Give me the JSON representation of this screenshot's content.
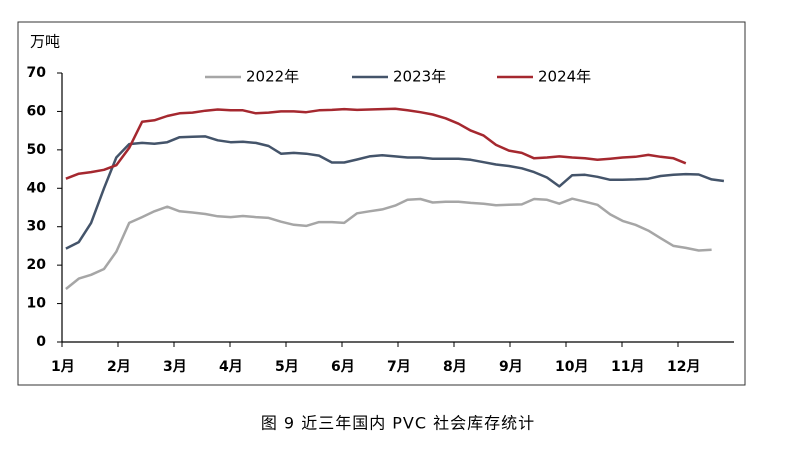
{
  "chart_data": {
    "type": "line",
    "y_label": "万吨",
    "x": [
      1.07,
      1.3,
      1.52,
      1.75,
      1.97,
      2.2,
      2.43,
      2.65,
      2.88,
      3.1,
      3.33,
      3.56,
      3.78,
      4.01,
      4.23,
      4.46,
      4.69,
      4.91,
      5.14,
      5.36,
      5.59,
      5.82,
      6.04,
      6.27,
      6.49,
      6.72,
      6.95,
      7.17,
      7.4,
      7.62,
      7.85,
      8.08,
      8.3,
      8.53,
      8.75,
      8.98,
      9.21,
      9.43,
      9.66,
      9.88,
      10.11,
      10.34,
      10.56,
      10.79,
      11.01,
      11.24,
      11.47,
      11.69,
      11.92,
      12.14,
      12.37,
      12.6,
      12.82
    ],
    "series": [
      {
        "name": "2022年",
        "color": "#a6a6a6",
        "values": [
          13.8,
          16.5,
          17.5,
          19,
          23.5,
          31,
          32.5,
          34,
          35.2,
          34,
          33.7,
          33.3,
          32.7,
          32.5,
          32.8,
          32.5,
          32.3,
          31.3,
          30.5,
          30.2,
          31.2,
          31.2,
          31,
          33.5,
          34,
          34.5,
          35.5,
          37,
          37.2,
          36.3,
          36.5,
          36.5,
          36.2,
          36,
          35.6,
          35.7,
          35.8,
          37.2,
          37,
          36,
          37.3,
          36.5,
          35.7,
          33.2,
          31.5,
          30.5,
          29,
          27,
          25,
          24.5,
          23.8,
          24,
          null
        ]
      },
      {
        "name": "2023年",
        "color": "#44546a",
        "values": [
          24.3,
          26,
          31,
          40,
          48,
          51.5,
          51.8,
          51.6,
          52,
          53.3,
          53.4,
          53.5,
          52.5,
          52,
          52.1,
          51.8,
          51,
          49,
          49.2,
          49,
          48.5,
          46.7,
          46.7,
          47.5,
          48.3,
          48.6,
          48.3,
          48,
          48,
          47.7,
          47.7,
          47.7,
          47.4,
          46.8,
          46.2,
          45.8,
          45.2,
          44.2,
          42.8,
          40.5,
          43.4,
          43.5,
          43,
          42.2,
          42.2,
          42.3,
          42.5,
          43.2,
          43.5,
          43.7,
          43.6,
          42.3,
          41.9
        ]
      },
      {
        "name": "2024年",
        "color": "#a5282f",
        "values": [
          42.5,
          43.8,
          44.2,
          44.8,
          46,
          50.5,
          57.3,
          57.7,
          58.8,
          59.5,
          59.7,
          60.2,
          60.5,
          60.3,
          60.3,
          59.5,
          59.7,
          60,
          60,
          59.8,
          60.3,
          60.4,
          60.6,
          60.4,
          60.5,
          60.6,
          60.7,
          60.3,
          59.8,
          59.2,
          58.2,
          56.8,
          55,
          53.7,
          51.3,
          49.8,
          49.2,
          47.8,
          48,
          48.3,
          48,
          47.8,
          47.4,
          47.7,
          48,
          48.2,
          48.7,
          48.2,
          47.8,
          46.5,
          null,
          null,
          null
        ]
      }
    ],
    "xlim": [
      1,
      13
    ],
    "xticks": [
      {
        "value": 1,
        "label": "1月"
      },
      {
        "value": 2,
        "label": "2月"
      },
      {
        "value": 3,
        "label": "3月"
      },
      {
        "value": 4,
        "label": "4月"
      },
      {
        "value": 5,
        "label": "5月"
      },
      {
        "value": 6,
        "label": "6月"
      },
      {
        "value": 7,
        "label": "7月"
      },
      {
        "value": 8,
        "label": "8月"
      },
      {
        "value": 9,
        "label": "9月"
      },
      {
        "value": 10,
        "label": "10月"
      },
      {
        "value": 11,
        "label": "11月"
      },
      {
        "value": 12,
        "label": "12月"
      }
    ],
    "ylim": [
      0,
      70
    ],
    "yticks": [
      0,
      10,
      20,
      30,
      40,
      50,
      60,
      70
    ],
    "grid": false,
    "legend": "top"
  },
  "caption": "图 9  近三年国内 PVC 社会库存统计"
}
